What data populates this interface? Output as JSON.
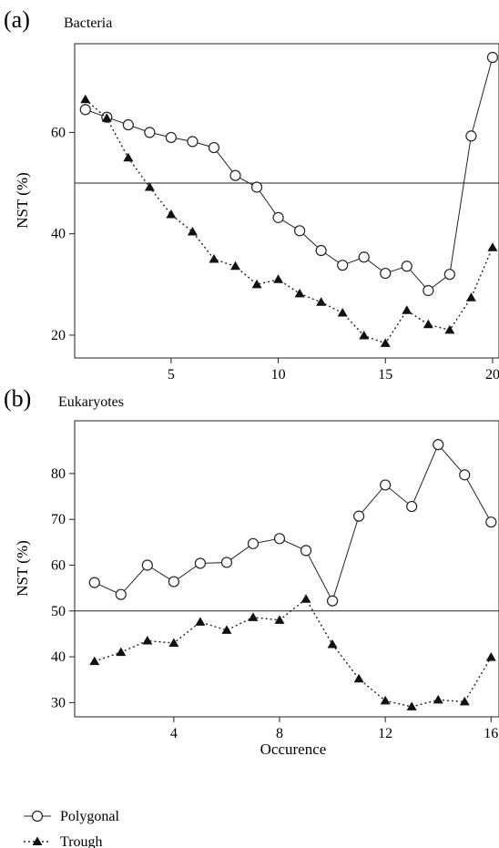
{
  "figure": {
    "xlabel": "Occurence",
    "legend": {
      "placement": "bottom-left",
      "items": [
        {
          "label": "Polygonal",
          "marker": "open-circle",
          "line": "solid"
        },
        {
          "label": "Trough",
          "marker": "filled-triangle",
          "line": "dotted"
        }
      ]
    }
  },
  "chart_data": [
    {
      "type": "line",
      "panel": "(a)",
      "title": "Bacteria",
      "xlabel": "",
      "ylabel": "NST (%)",
      "x": [
        1,
        2,
        3,
        4,
        5,
        6,
        7,
        8,
        9,
        10,
        11,
        12,
        13,
        14,
        15,
        16,
        17,
        18,
        19,
        20
      ],
      "xticks": [
        5,
        10,
        15,
        20
      ],
      "yticks": [
        20,
        40,
        60
      ],
      "xlim": [
        0.5,
        20.3
      ],
      "ylim": [
        15.5,
        77.5
      ],
      "reference_line": 50,
      "grid": false,
      "series": [
        {
          "name": "Polygonal",
          "marker": "open-circle",
          "line": "solid",
          "values": [
            64.5,
            63.0,
            61.5,
            60.0,
            59.0,
            58.2,
            57.0,
            51.5,
            49.2,
            43.2,
            40.6,
            36.7,
            33.8,
            35.4,
            32.2,
            33.6,
            28.8,
            32.0,
            59.3,
            74.8
          ]
        },
        {
          "name": "Trough",
          "marker": "filled-triangle",
          "line": "dotted",
          "values": [
            66.5,
            62.8,
            55.0,
            49.2,
            43.8,
            40.4,
            35.0,
            33.6,
            30.0,
            31.0,
            28.2,
            26.5,
            24.4,
            19.9,
            18.4,
            24.9,
            22.1,
            21.0,
            27.4,
            37.3
          ]
        }
      ]
    },
    {
      "type": "line",
      "panel": "(b)",
      "title": "Eukaryotes",
      "xlabel": "Occurence",
      "ylabel": "NST (%)",
      "x": [
        1,
        2,
        3,
        4,
        5,
        6,
        7,
        8,
        9,
        10,
        11,
        12,
        13,
        14,
        15,
        16
      ],
      "xticks": [
        4,
        8,
        12,
        16
      ],
      "yticks": [
        30,
        40,
        50,
        60,
        70,
        80
      ],
      "xlim": [
        0.25,
        16.3
      ],
      "ylim": [
        26.9,
        91.5
      ],
      "reference_line": 50,
      "grid": false,
      "series": [
        {
          "name": "Polygonal",
          "marker": "open-circle",
          "line": "solid",
          "values": [
            56.2,
            53.6,
            60.0,
            56.4,
            60.4,
            60.6,
            64.7,
            65.8,
            63.2,
            52.2,
            70.7,
            77.5,
            72.8,
            86.3,
            79.7,
            69.4
          ]
        },
        {
          "name": "Trough",
          "marker": "filled-triangle",
          "line": "dotted",
          "values": [
            39.0,
            41.0,
            43.5,
            43.0,
            47.6,
            45.8,
            48.6,
            48.0,
            52.6,
            42.7,
            35.2,
            30.4,
            29.1,
            30.6,
            30.2,
            39.9
          ]
        }
      ]
    }
  ]
}
